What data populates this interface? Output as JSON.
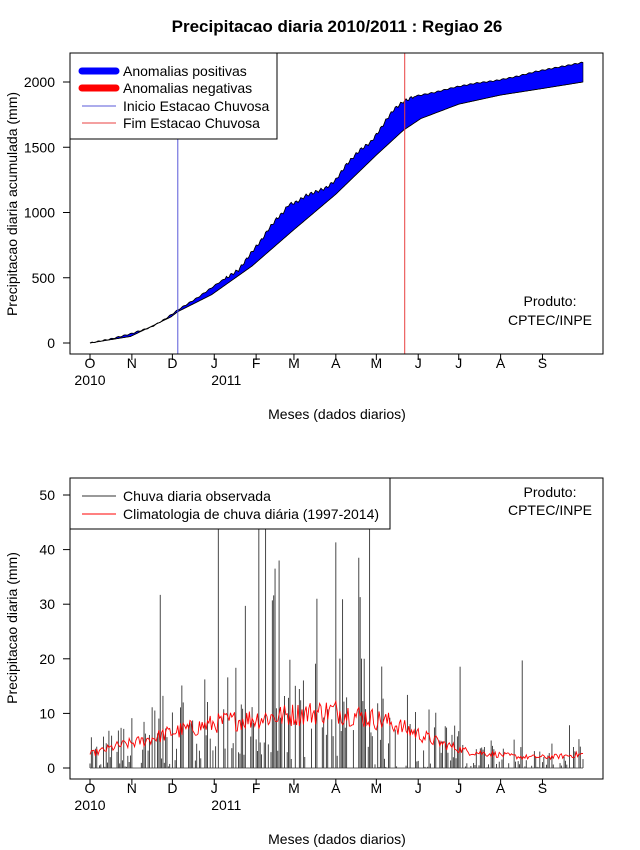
{
  "figure": {
    "title": "Precipitacao diaria 2010/2011 : Regiao 26",
    "credit_line1": "Produto:",
    "credit_line2": "CPTEC/INPE"
  },
  "months": {
    "labels": [
      "O",
      "N",
      "D",
      "J",
      "F",
      "M",
      "A",
      "M",
      "J",
      "J",
      "A",
      "S"
    ],
    "day_offsets": [
      0,
      31,
      61,
      92,
      123,
      151,
      182,
      212,
      243,
      273,
      304,
      335
    ],
    "year_labels": [
      {
        "text": "2010",
        "day": 0
      },
      {
        "text": "2011",
        "day": 92
      }
    ]
  },
  "chart_data": [
    {
      "type": "area",
      "title": "Precipitacao diaria 2010/2011 : Regiao 26",
      "xlabel": "Meses (dados diarios)",
      "ylabel": "Precipitacao diaria acumulada (mm)",
      "xlim": [
        0,
        365
      ],
      "ylim": [
        0,
        2200
      ],
      "yticks": [
        0,
        500,
        1000,
        1500,
        2000
      ],
      "colors": {
        "positive": "#0000ff",
        "negative": "#ff0000",
        "season_start": "#5a5ad8",
        "season_end": "#e84040"
      },
      "legend": [
        {
          "label": "Anomalias positivas",
          "style": "thick",
          "color": "#0000ff"
        },
        {
          "label": "Anomalias negativas",
          "style": "thick",
          "color": "#ff0000"
        },
        {
          "label": "Inicio Estacao Chuvosa",
          "style": "thin",
          "color": "#5a5ad8"
        },
        {
          "label": "Fim Estacao Chuvosa",
          "style": "thin",
          "color": "#e84040"
        }
      ],
      "season_start_day": 65,
      "season_end_day": 233,
      "series": [
        {
          "name": "observed_cumulative",
          "points": [
            [
              0,
              0
            ],
            [
              15,
              30
            ],
            [
              30,
              70
            ],
            [
              45,
              120
            ],
            [
              55,
              180
            ],
            [
              62,
              230
            ],
            [
              66,
              260
            ],
            [
              80,
              350
            ],
            [
              95,
              460
            ],
            [
              110,
              560
            ],
            [
              120,
              700
            ],
            [
              127,
              790
            ],
            [
              132,
              870
            ],
            [
              138,
              950
            ],
            [
              143,
              1000
            ],
            [
              147,
              1060
            ],
            [
              153,
              1080
            ],
            [
              160,
              1130
            ],
            [
              175,
              1190
            ],
            [
              182,
              1250
            ],
            [
              190,
              1370
            ],
            [
              200,
              1480
            ],
            [
              208,
              1540
            ],
            [
              215,
              1640
            ],
            [
              220,
              1720
            ],
            [
              225,
              1790
            ],
            [
              232,
              1850
            ],
            [
              240,
              1890
            ],
            [
              255,
              1920
            ],
            [
              270,
              1960
            ],
            [
              285,
              1990
            ],
            [
              300,
              2010
            ],
            [
              315,
              2040
            ],
            [
              330,
              2080
            ],
            [
              345,
              2110
            ],
            [
              360,
              2140
            ],
            [
              365,
              2150
            ]
          ]
        },
        {
          "name": "climatology_cumulative",
          "points": [
            [
              0,
              0
            ],
            [
              30,
              50
            ],
            [
              60,
              200
            ],
            [
              65,
              240
            ],
            [
              90,
              370
            ],
            [
              120,
              590
            ],
            [
              150,
              860
            ],
            [
              182,
              1140
            ],
            [
              212,
              1440
            ],
            [
              232,
              1630
            ],
            [
              245,
              1720
            ],
            [
              273,
              1830
            ],
            [
              304,
              1900
            ],
            [
              335,
              1950
            ],
            [
              365,
              2000
            ]
          ]
        }
      ]
    },
    {
      "type": "bar",
      "title": "",
      "xlabel": "Meses (dados diarios)",
      "ylabel": "Precipitacao diaria (mm)",
      "xlim": [
        0,
        365
      ],
      "ylim": [
        0,
        52
      ],
      "yticks": [
        0,
        10,
        20,
        30,
        40,
        50
      ],
      "colors": {
        "observed": "#333333",
        "climatology": "#ff0000"
      },
      "legend": [
        {
          "label": "Chuva diaria observada",
          "color": "#333333"
        },
        {
          "label": "Climatologia de chuva diária (1997-2014)",
          "color": "#ff0000"
        }
      ],
      "notable_peaks": [
        {
          "day": 52,
          "value": 31.7
        },
        {
          "day": 95,
          "value": 44
        },
        {
          "day": 115,
          "value": 29.7
        },
        {
          "day": 135,
          "value": 30.7
        },
        {
          "day": 140,
          "value": 38
        },
        {
          "day": 168,
          "value": 31
        },
        {
          "day": 200,
          "value": 31.3
        },
        {
          "day": 207,
          "value": 44
        },
        {
          "day": 320,
          "value": 19.7
        }
      ],
      "climatology_anchor": {
        "days": [
          0,
          20,
          40,
          60,
          80,
          100,
          120,
          140,
          160,
          180,
          200,
          220,
          240,
          260,
          280,
          300,
          320,
          340,
          365
        ],
        "values": [
          2.5,
          4,
          5,
          6.5,
          7.5,
          8.5,
          9,
          9.5,
          10,
          10.5,
          9.5,
          8.5,
          6.5,
          4.5,
          3,
          2.5,
          2,
          2,
          2.5
        ]
      }
    }
  ]
}
